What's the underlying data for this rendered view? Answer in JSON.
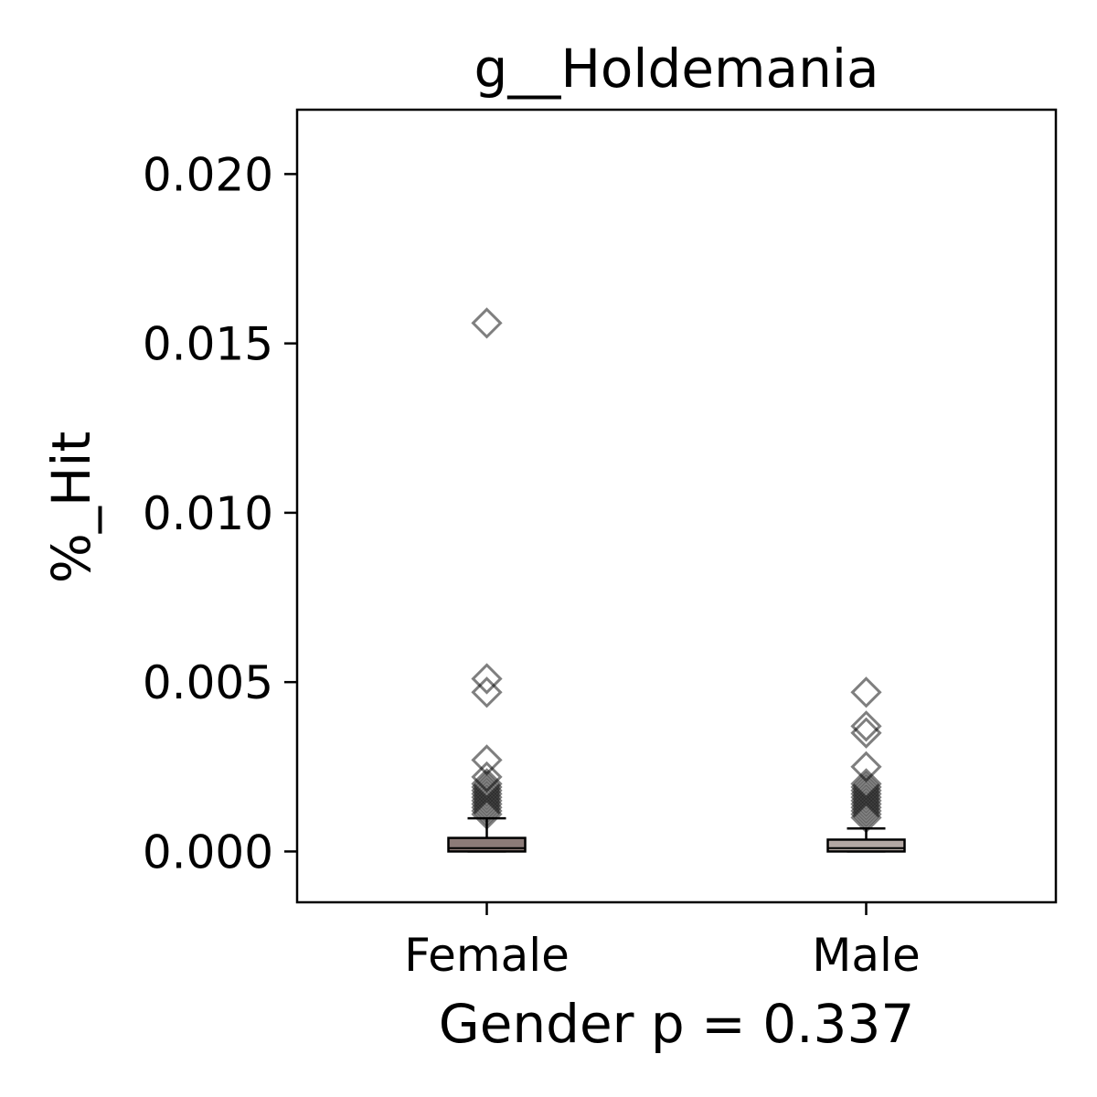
{
  "chart_data": {
    "type": "box",
    "title": "g__Holdemania",
    "xlabel": "Gender p = 0.337",
    "ylabel": "%_Hit",
    "categories": [
      "Female",
      "Male"
    ],
    "ylim": [
      -0.0015,
      0.0219
    ],
    "yticks": [
      0.0,
      0.005,
      0.01,
      0.015,
      0.02
    ],
    "ytick_labels": [
      "0.000",
      "0.005",
      "0.010",
      "0.015",
      "0.020"
    ],
    "grid": false,
    "series": [
      {
        "category": "Female",
        "q1": 0.0,
        "median": 0.0001,
        "q3": 0.0004,
        "whisker_low": 0.0,
        "whisker_high": 0.00098,
        "box_color": "#8c7b78",
        "outliers": [
          0.0156,
          0.0051,
          0.0047,
          0.0027,
          0.0022,
          0.002,
          0.0019,
          0.0018,
          0.0017,
          0.0016,
          0.0015,
          0.0014,
          0.0013,
          0.0012,
          0.0011
        ]
      },
      {
        "category": "Male",
        "q1": 0.0,
        "median": 0.0001,
        "q3": 0.00035,
        "whisker_low": 0.0,
        "whisker_high": 0.00068,
        "box_color": "#b3a7a3",
        "outliers": [
          0.0047,
          0.0037,
          0.0035,
          0.0025,
          0.002,
          0.0019,
          0.0018,
          0.0017,
          0.0016,
          0.0015,
          0.0014,
          0.0013,
          0.0012,
          0.0011,
          0.001
        ]
      }
    ]
  }
}
